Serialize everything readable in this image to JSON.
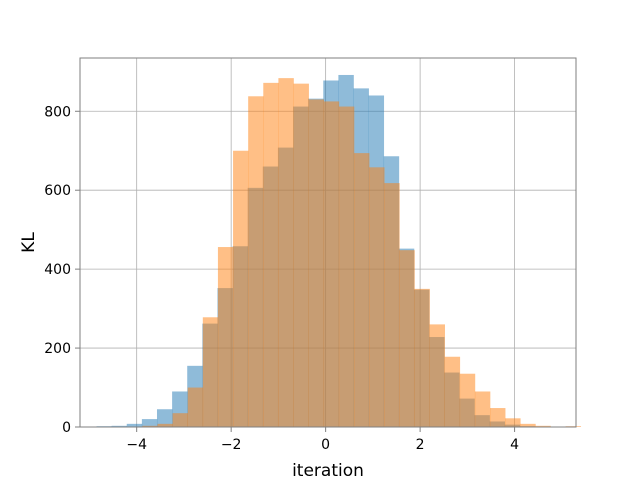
{
  "chart_data": {
    "type": "bar",
    "subtype": "overlaid-histogram",
    "title": "",
    "xlabel": "iteration",
    "ylabel": "KL",
    "xlim": [
      -5.2,
      5.3
    ],
    "ylim": [
      0,
      935
    ],
    "grid": true,
    "legend": "none",
    "xticks": [
      -4,
      -2,
      0,
      2,
      4
    ],
    "xtick_labels": [
      "−4",
      "−2",
      "0",
      "2",
      "4"
    ],
    "yticks": [
      0,
      200,
      400,
      600,
      800
    ],
    "ytick_labels": [
      "0",
      "200",
      "400",
      "600",
      "800"
    ],
    "series": [
      {
        "color": "#1f77b4",
        "opacity": 0.5,
        "bin_start": -4.85,
        "bin_width": 0.32,
        "values": [
          2,
          3,
          8,
          20,
          45,
          90,
          155,
          262,
          352,
          458,
          606,
          660,
          708,
          812,
          832,
          878,
          892,
          858,
          840,
          686,
          452,
          348,
          228,
          138,
          72,
          30,
          14,
          6,
          2
        ]
      },
      {
        "color": "#ff7f0e",
        "opacity": 0.5,
        "bin_start": -4.2,
        "bin_width": 0.32,
        "values": [
          1,
          3,
          8,
          35,
          100,
          278,
          456,
          700,
          838,
          872,
          884,
          870,
          830,
          825,
          812,
          694,
          658,
          618,
          448,
          350,
          260,
          178,
          135,
          90,
          48,
          22,
          8,
          3,
          1,
          2
        ]
      }
    ]
  }
}
